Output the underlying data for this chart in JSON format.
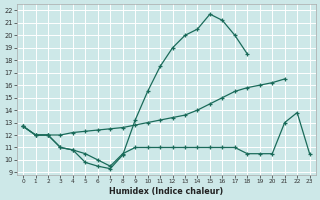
{
  "xlabel": "Humidex (Indice chaleur)",
  "bg_color": "#cde8e8",
  "grid_color": "#ffffff",
  "line_color": "#1a6b5a",
  "x_ticks": [
    0,
    1,
    2,
    3,
    4,
    5,
    6,
    7,
    8,
    9,
    10,
    11,
    12,
    13,
    14,
    15,
    16,
    17,
    18,
    19,
    20,
    21,
    22,
    23
  ],
  "y_ticks": [
    9,
    10,
    11,
    12,
    13,
    14,
    15,
    16,
    17,
    18,
    19,
    20,
    21,
    22
  ],
  "ylim": [
    8.8,
    22.5
  ],
  "xlim": [
    -0.5,
    23.5
  ],
  "line1_x": [
    0,
    1,
    2,
    3,
    4,
    5,
    6,
    7,
    8,
    9,
    10,
    11,
    12,
    13,
    14,
    15,
    16,
    17,
    18
  ],
  "line1_y": [
    12.7,
    12.0,
    12.0,
    11.0,
    10.8,
    9.8,
    9.5,
    9.3,
    10.4,
    13.2,
    15.5,
    17.5,
    19.0,
    20.0,
    20.5,
    21.7,
    21.2,
    20.0,
    18.5
  ],
  "line2_x": [
    0,
    1,
    2,
    3,
    4,
    5,
    6,
    7,
    8,
    9,
    10,
    11,
    12,
    13,
    14,
    15,
    16,
    17,
    18,
    19,
    20,
    21
  ],
  "line2_y": [
    12.7,
    12.0,
    12.0,
    12.0,
    12.2,
    12.3,
    12.4,
    12.5,
    12.6,
    12.8,
    13.0,
    13.2,
    13.4,
    13.6,
    14.0,
    14.5,
    15.0,
    15.5,
    15.8,
    16.0,
    16.2,
    16.5
  ],
  "line3_x": [
    0,
    1,
    2,
    3,
    4,
    5,
    6,
    7,
    8,
    9,
    10,
    11,
    12,
    13,
    14,
    15,
    16,
    17,
    18,
    19,
    20,
    21,
    22,
    23
  ],
  "line3_y": [
    12.7,
    12.0,
    12.0,
    11.0,
    10.8,
    10.5,
    10.0,
    9.5,
    10.5,
    11.0,
    11.0,
    11.0,
    11.0,
    11.0,
    11.0,
    11.0,
    11.0,
    11.0,
    10.5,
    10.5,
    10.5,
    13.0,
    13.8,
    10.5
  ]
}
